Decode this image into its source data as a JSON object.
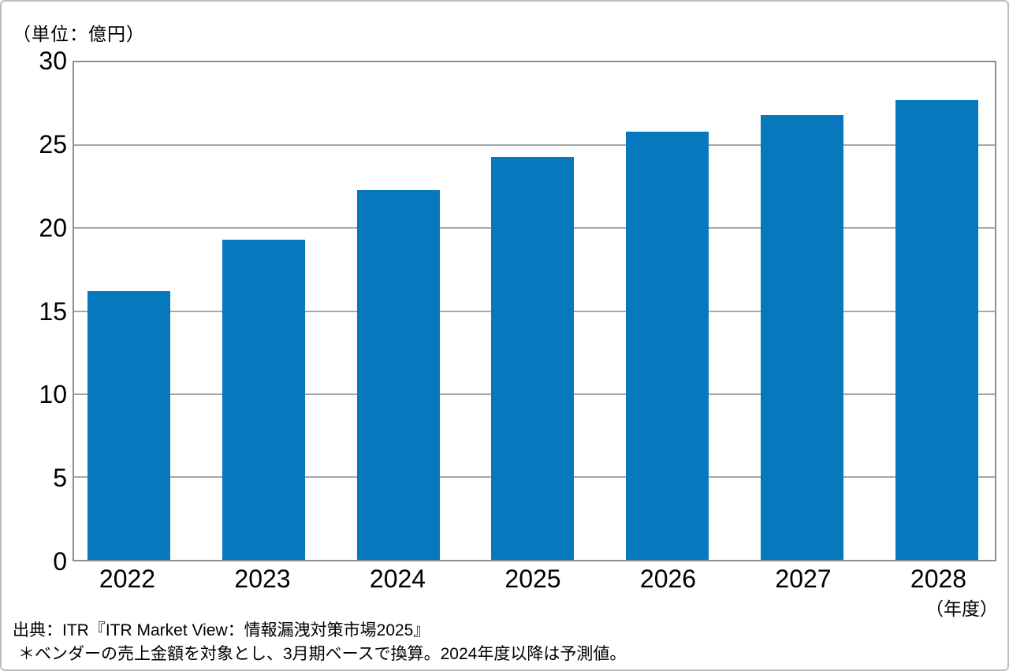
{
  "chart_data": {
    "type": "bar",
    "categories": [
      "2022",
      "2023",
      "2024",
      "2025",
      "2026",
      "2027",
      "2028"
    ],
    "values": [
      16.2,
      19.3,
      22.3,
      24.3,
      25.8,
      26.8,
      27.7
    ],
    "title": "",
    "xlabel": "（年度）",
    "ylabel": "（単位：億円）",
    "ylim": [
      0,
      30
    ],
    "yticks": [
      0,
      5,
      10,
      15,
      20,
      25,
      30
    ],
    "grid": true,
    "legend": false,
    "bar_color": "#0778be",
    "gridline_color": "#a6a6a6",
    "axis_frame_color": "#8f8f8f"
  },
  "footnotes": {
    "source_line": "出典：ITR『ITR Market View：情報漏洩対策市場2025』",
    "note_line": "＊ベンダーの売上金額を対象とし、3月期ベースで換算。2024年度以降は予測値。"
  }
}
